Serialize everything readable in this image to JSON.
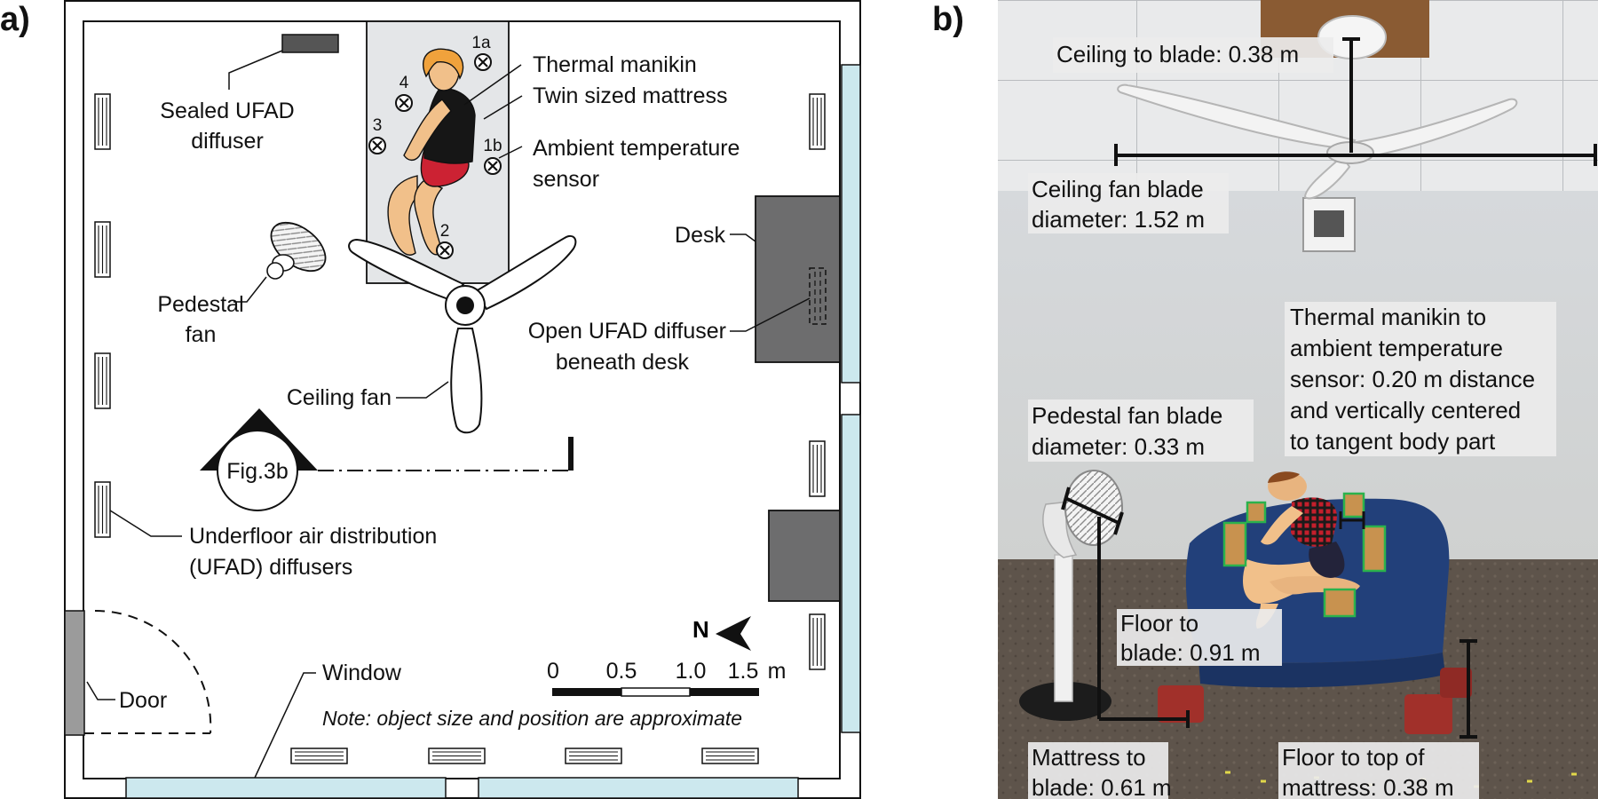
{
  "panel_a": {
    "tag": "a)",
    "labels": {
      "sealed_diffuser": [
        "Sealed UFAD",
        "diffuser"
      ],
      "pedestal_fan": [
        "Pedestal",
        "fan"
      ],
      "thermal_manikin": "Thermal manikin",
      "mattress": "Twin sized mattress",
      "ambient_sensor": [
        "Ambient temperature",
        "sensor"
      ],
      "desk": "Desk",
      "open_diffuser": [
        "Open UFAD diffuser",
        "beneath desk"
      ],
      "ceiling_fan": "Ceiling fan",
      "fig_ref": "Fig.3b",
      "ufad": [
        "Underfloor air distribution",
        "(UFAD) diffusers"
      ],
      "door": "Door",
      "window": "Window",
      "note": "Note: object size and position are approximate"
    },
    "sensors": [
      "1a",
      "1b",
      "2",
      "3",
      "4"
    ],
    "north": "N",
    "scale": {
      "ticks": [
        "0",
        "0.5",
        "1.0",
        "1.5"
      ],
      "unit": "m"
    }
  },
  "panel_b": {
    "tag": "b)",
    "annotations": {
      "ceiling_to_blade": "Ceiling to blade: 0.38 m",
      "ceiling_fan_diameter": [
        "Ceiling fan blade",
        "diameter: 1.52 m"
      ],
      "manikin_to_sensor": [
        "Thermal manikin to",
        "ambient temperature",
        "sensor: 0.20 m distance",
        "and vertically centered",
        "to tangent body part"
      ],
      "pedestal_diameter": [
        "Pedestal fan blade",
        "diameter: 0.33 m"
      ],
      "floor_to_blade": [
        "Floor to",
        "blade: 0.91 m"
      ],
      "mattress_to_blade": [
        "Mattress to",
        "blade: 0.61 m"
      ],
      "floor_to_mattress": [
        "Floor to top of",
        "mattress: 0.38 m"
      ]
    }
  },
  "colors": {
    "window": "#cce8ee",
    "desk": "#6d6d6e",
    "mattress_plan": "#e4e6e8",
    "door": "#9b9b9b",
    "skirt": "#cc2233",
    "shirt": "#161616",
    "skin": "#f1c08a",
    "hair": "#f0a23c",
    "sensor_box": "#c8924f",
    "sensor_outline": "#2bb24c",
    "mattress_photo": "#22407a"
  }
}
